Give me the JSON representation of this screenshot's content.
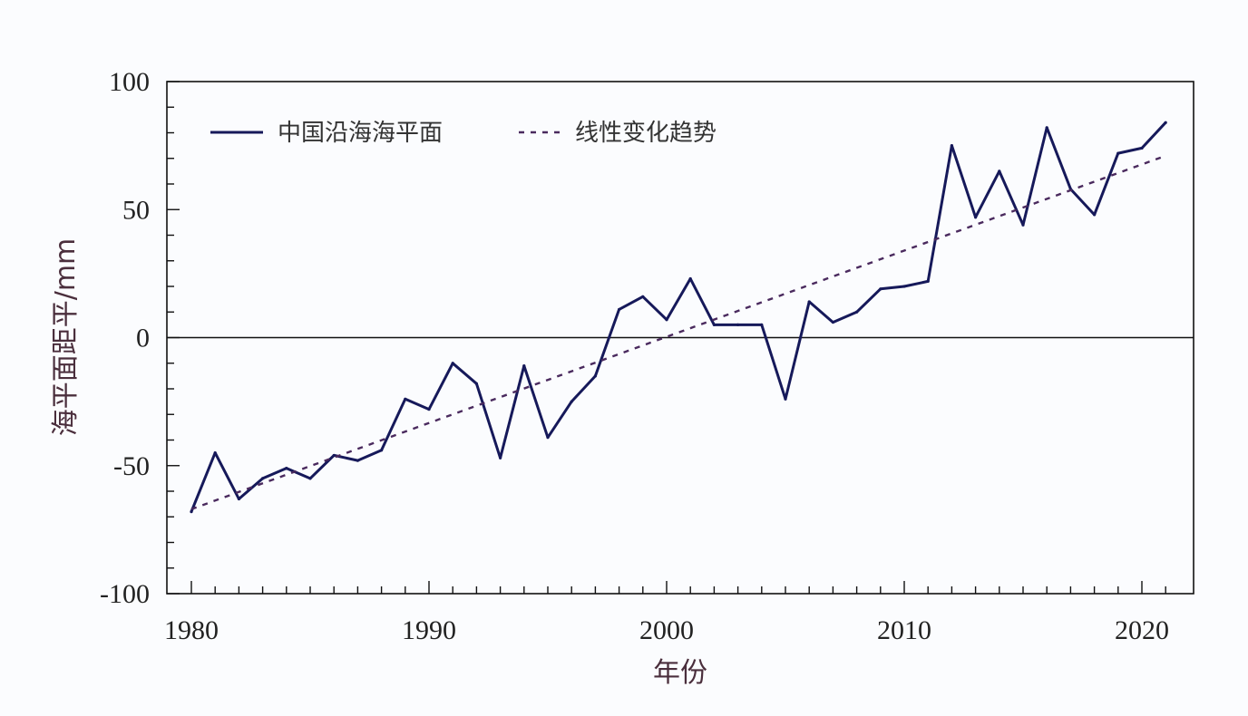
{
  "chart_data": {
    "type": "line",
    "xlabel": "年份",
    "ylabel": "海平面距平/mm",
    "xlim": [
      1980,
      2022
    ],
    "ylim": [
      -100,
      100
    ],
    "x_ticks": [
      1980,
      1990,
      2000,
      2010,
      2020
    ],
    "y_ticks": [
      100,
      50,
      0,
      -50,
      -100
    ],
    "x_tick_labels": [
      "1980",
      "1990",
      "2000",
      "2010",
      "2020"
    ],
    "y_tick_labels": [
      "100",
      "50",
      "0",
      "-50",
      "-100"
    ],
    "zero_line": true,
    "grid": false,
    "legend_position": "top-left",
    "series": [
      {
        "name": "中国沿海海平面",
        "style": "solid",
        "color": "#16195a",
        "x": [
          1980,
          1981,
          1982,
          1983,
          1984,
          1985,
          1986,
          1987,
          1988,
          1989,
          1990,
          1991,
          1992,
          1993,
          1994,
          1995,
          1996,
          1997,
          1998,
          1999,
          2000,
          2001,
          2002,
          2003,
          2004,
          2005,
          2006,
          2007,
          2008,
          2009,
          2010,
          2011,
          2012,
          2013,
          2014,
          2015,
          2016,
          2017,
          2018,
          2019,
          2020,
          2021
        ],
        "values": [
          -68,
          -45,
          -63,
          -55,
          -51,
          -55,
          -46,
          -48,
          -44,
          -24,
          -28,
          -10,
          -18,
          -47,
          -11,
          -39,
          -25,
          -15,
          11,
          16,
          7,
          23,
          5,
          5,
          5,
          -24,
          14,
          6,
          10,
          19,
          20,
          22,
          75,
          47,
          65,
          44,
          82,
          58,
          48,
          72,
          74,
          84
        ]
      },
      {
        "name": "线性变化趋势",
        "style": "dashed",
        "color": "#4a2a5e",
        "x": [
          1980,
          2021
        ],
        "values": [
          -67,
          71
        ]
      }
    ]
  }
}
